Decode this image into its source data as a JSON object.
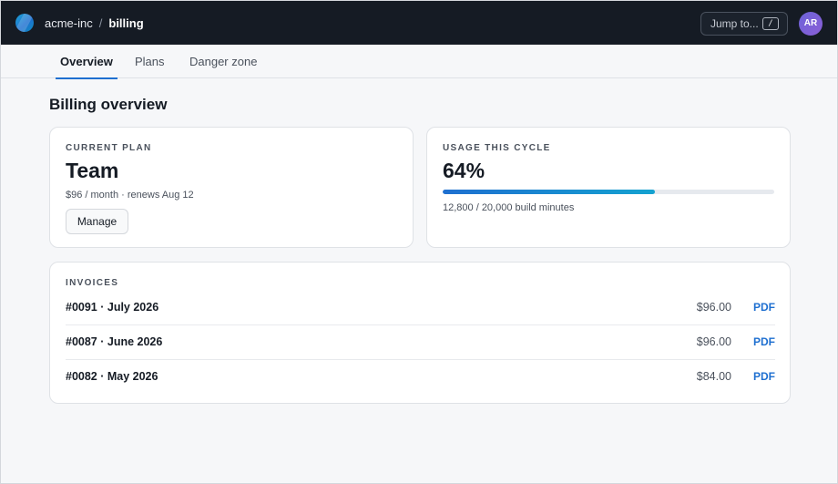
{
  "header": {
    "org": "acme-inc",
    "separator": "/",
    "page": "billing",
    "jump_label": "Jump to...",
    "jump_shortcut": "/",
    "avatar_initials": "AR",
    "logo_icon": "circle-logo-icon"
  },
  "tabs": [
    {
      "label": "Overview",
      "active": true
    },
    {
      "label": "Plans",
      "active": false
    },
    {
      "label": "Danger zone",
      "active": false
    }
  ],
  "page_title": "Billing overview",
  "plan": {
    "label": "CURRENT PLAN",
    "name": "Team",
    "details": "$96 / month · renews Aug 12",
    "manage_label": "Manage"
  },
  "usage": {
    "label": "USAGE THIS CYCLE",
    "percent_text": "64%",
    "fraction": 0.64,
    "details": "12,800 / 20,000 build minutes"
  },
  "invoices": {
    "label": "INVOICES",
    "rows": [
      {
        "title": "#0091 · July 2026",
        "amount": "$96.00",
        "link": "PDF"
      },
      {
        "title": "#0087 · June 2026",
        "amount": "$96.00",
        "link": "PDF"
      },
      {
        "title": "#0082 · May 2026",
        "amount": "$84.00",
        "link": "PDF"
      }
    ]
  },
  "colors": {
    "accent": "#1e6fd0",
    "topbar": "#151b24"
  }
}
